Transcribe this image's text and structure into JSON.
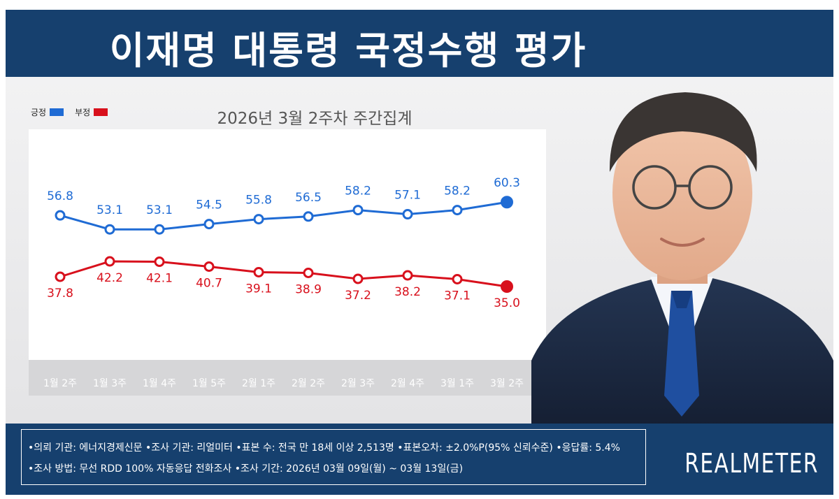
{
  "header": {
    "title": "이재명 대통령 국정수행 평가"
  },
  "legend": [
    {
      "label": "긍정",
      "color": "#1f6bd4"
    },
    {
      "label": "부정",
      "color": "#d8101c"
    }
  ],
  "chart_data": {
    "type": "line",
    "title": "2026년 3월 2주차 주간집계",
    "categories": [
      "1월 2주",
      "1월 3주",
      "1월 4주",
      "1월 5주",
      "2월 1주",
      "2월 2주",
      "2월 3주",
      "2월 4주",
      "3월 1주",
      "3월 2주"
    ],
    "series": [
      {
        "name": "긍정",
        "color": "#1f6bd4",
        "values": [
          56.8,
          53.1,
          53.1,
          54.5,
          55.8,
          56.5,
          58.2,
          57.1,
          58.2,
          60.3
        ]
      },
      {
        "name": "부정",
        "color": "#d8101c",
        "values": [
          37.8,
          42.2,
          42.1,
          40.7,
          39.1,
          38.9,
          37.2,
          38.2,
          37.1,
          35.0
        ]
      }
    ],
    "value_labels": {
      "긍정": [
        "56.8",
        "53.1",
        "53.1",
        "54.5",
        "55.8",
        "56.5",
        "58.2",
        "57.1",
        "58.2",
        "60.3"
      ],
      "부정": [
        "37.8",
        "42.2",
        "42.1",
        "40.7",
        "39.1",
        "38.9",
        "37.2",
        "38.2",
        "37.1",
        "35.0"
      ]
    },
    "grid": false,
    "legend_position": "top-left"
  },
  "footer": {
    "line1": "•의뢰 기관: 에너지경제신문  •조사 기관: 리얼미터  •표본 수: 전국 만 18세 이상 2,513명  •표본오차: ±2.0%P(95% 신뢰수준)  •응답률: 5.4%",
    "line2": "•조사 방법: 무선 RDD 100% 자동응답 전화조사  •조사 기간: 2026년 03월 09일(월) ~ 03월 13일(금)",
    "brand": "REALMETER"
  }
}
